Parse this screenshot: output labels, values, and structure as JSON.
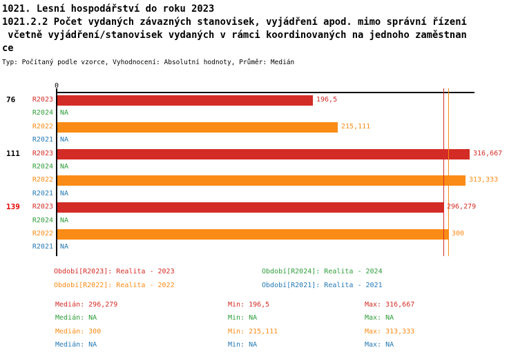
{
  "title": {
    "line1": "1021. Lesní hospodářství do roku 2023",
    "line2": "1021.2.2 Počet vydaných závazných stanovisek, vyjádření apod. mimo správní řízení",
    "line3": " včetně vyjádření/stanovisek vydaných v rámci koordinovaných na jednoho zaměstnan",
    "line4": "ce",
    "subtitle": "Typ: Počítaný podle vzorce, Vyhodnocení: Absolutní hodnoty, Průměr: Medián"
  },
  "colors": {
    "red": "#d32b25",
    "orange": "#fa8b16",
    "green": "#2e9c3a",
    "blue": "#2579b5",
    "black": "#000000",
    "group_highlight_red": "#e60000",
    "axis": "#000000",
    "background": "#ffffff"
  },
  "chart_data": {
    "type": "bar",
    "orientation": "horizontal",
    "axis_zero_label": "0",
    "xlim": [
      0,
      335
    ],
    "grid": false,
    "groups": [
      {
        "label": "76",
        "label_color_key": "black",
        "rows": [
          {
            "series": "R2023",
            "color_key": "red",
            "value": 196.5,
            "display": "196,5"
          },
          {
            "series": "R2024",
            "color_key": "green",
            "value": null,
            "display": "NA"
          },
          {
            "series": "R2022",
            "color_key": "orange",
            "value": 215.111,
            "display": "215,111"
          },
          {
            "series": "R2021",
            "color_key": "blue",
            "value": null,
            "display": "NA"
          }
        ]
      },
      {
        "label": "111",
        "label_color_key": "black",
        "rows": [
          {
            "series": "R2023",
            "color_key": "red",
            "value": 316.667,
            "display": "316,667"
          },
          {
            "series": "R2024",
            "color_key": "green",
            "value": null,
            "display": "NA"
          },
          {
            "series": "R2022",
            "color_key": "orange",
            "value": 313.333,
            "display": "313,333"
          },
          {
            "series": "R2021",
            "color_key": "blue",
            "value": null,
            "display": "NA"
          }
        ]
      },
      {
        "label": "139",
        "label_color_key": "group_highlight_red",
        "rows": [
          {
            "series": "R2023",
            "color_key": "red",
            "value": 296.279,
            "display": "296,279"
          },
          {
            "series": "R2024",
            "color_key": "green",
            "value": null,
            "display": "NA"
          },
          {
            "series": "R2022",
            "color_key": "orange",
            "value": 300,
            "display": "300"
          },
          {
            "series": "R2021",
            "color_key": "blue",
            "value": null,
            "display": "NA"
          }
        ]
      }
    ],
    "median_lines": [
      {
        "value": 296.279,
        "color_key": "red"
      },
      {
        "value": 300,
        "color_key": "orange"
      }
    ],
    "legend_position": "bottom"
  },
  "legend": [
    {
      "label": "Období[R2023]: Realita - 2023",
      "color_key": "red",
      "col": 0,
      "row": 0
    },
    {
      "label": "Období[R2024]: Realita - 2024",
      "color_key": "green",
      "col": 1,
      "row": 0
    },
    {
      "label": "Období[R2022]: Realita - 2022",
      "color_key": "orange",
      "col": 0,
      "row": 1
    },
    {
      "label": "Období[R2021]: Realita - 2021",
      "color_key": "blue",
      "col": 1,
      "row": 1
    }
  ],
  "stats": [
    {
      "color_key": "red",
      "cells": [
        {
          "k": "Medián",
          "v": "296,279"
        },
        {
          "k": "Min",
          "v": "196,5"
        },
        {
          "k": "Max",
          "v": "316,667"
        }
      ]
    },
    {
      "color_key": "green",
      "cells": [
        {
          "k": "Medián",
          "v": "NA"
        },
        {
          "k": "Min",
          "v": "NA"
        },
        {
          "k": "Max",
          "v": "NA"
        }
      ]
    },
    {
      "color_key": "orange",
      "cells": [
        {
          "k": "Medián",
          "v": "300"
        },
        {
          "k": "Min",
          "v": "215,111"
        },
        {
          "k": "Max",
          "v": "313,333"
        }
      ]
    },
    {
      "color_key": "blue",
      "cells": [
        {
          "k": "Medián",
          "v": "NA"
        },
        {
          "k": "Min",
          "v": "NA"
        },
        {
          "k": "Max",
          "v": "NA"
        }
      ]
    }
  ]
}
